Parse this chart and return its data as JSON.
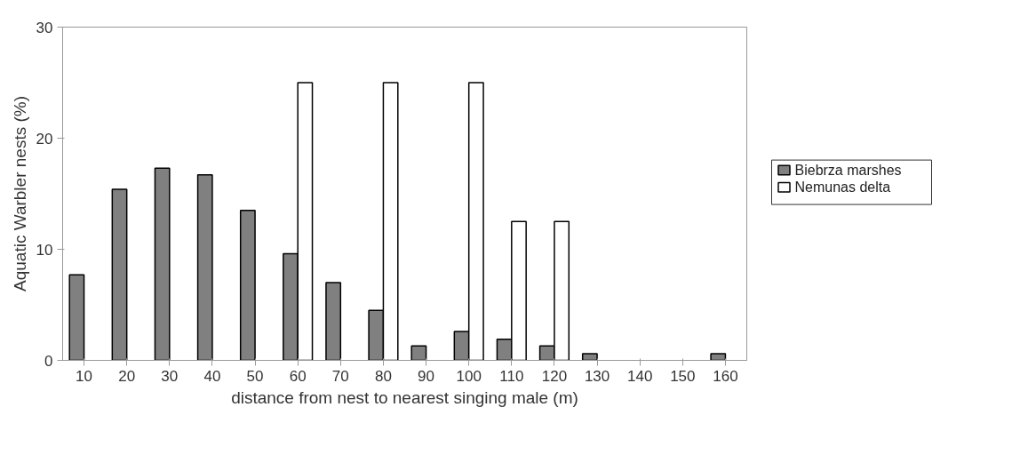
{
  "chart_data": {
    "type": "bar",
    "xlabel": "distance from nest to nearest singing male (m)",
    "ylabel": "Aquatic Warbler nests (%)",
    "categories": [
      "10",
      "20",
      "30",
      "40",
      "50",
      "60",
      "70",
      "80",
      "90",
      "100",
      "110",
      "120",
      "130",
      "140",
      "150",
      "160"
    ],
    "series": [
      {
        "name": "Biebrza marshes",
        "color": "#808080",
        "values": [
          7.7,
          15.4,
          17.3,
          16.7,
          13.5,
          9.6,
          7.0,
          4.5,
          1.3,
          2.6,
          1.9,
          1.3,
          0.6,
          null,
          null,
          0.6
        ]
      },
      {
        "name": "Nemunas delta",
        "color": "#ffffff",
        "values": [
          null,
          null,
          null,
          null,
          null,
          25,
          null,
          25,
          null,
          25,
          12.5,
          12.5,
          null,
          null,
          null,
          null
        ]
      }
    ],
    "ylim": [
      0,
      30
    ],
    "yticks": [
      0,
      10,
      20,
      30
    ],
    "grid": false,
    "legend": "right"
  }
}
